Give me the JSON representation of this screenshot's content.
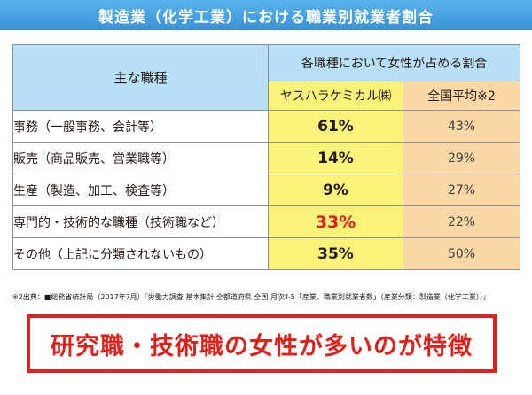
{
  "title": "製造業（化学工業）における職業別就業者割合",
  "table": {
    "header_job": "主な職種",
    "header_group": "各職種において女性が占める割合",
    "header_company": "ヤスハラケミカル㈱",
    "header_national": "全国平均※2",
    "rows": [
      {
        "job": "事務（一般事務、会計等）",
        "company": "61%",
        "national": "43%"
      },
      {
        "job": "販売（商品販売、営業職等）",
        "company": "14%",
        "national": "29%"
      },
      {
        "job": "生産（製造、加工、検査等）",
        "company": "9%",
        "national": "27%"
      },
      {
        "job": "専門的・技術的な職種（技術職など）",
        "company": "33%",
        "national": "22%"
      },
      {
        "job": "その他（上記に分類されないもの）",
        "company": "35%",
        "national": "50%"
      }
    ]
  },
  "source_note": "※2出典：■総務省統計局（2017年7月）『労働力調査 基本集計 全都道府県 全国 月次Ⅱ-5「産業、職業別就業者数」（産業分類：製造業（化学工業））』",
  "callout": "研究職・技術職の女性が多いのが特徴",
  "colors": {
    "title_bar": "#3a92d4",
    "header_blue": "#b7dff5",
    "company_yellow": "#fbf27a",
    "national_orange": "#fbd8a5",
    "highlight_red": "#e0201b"
  }
}
